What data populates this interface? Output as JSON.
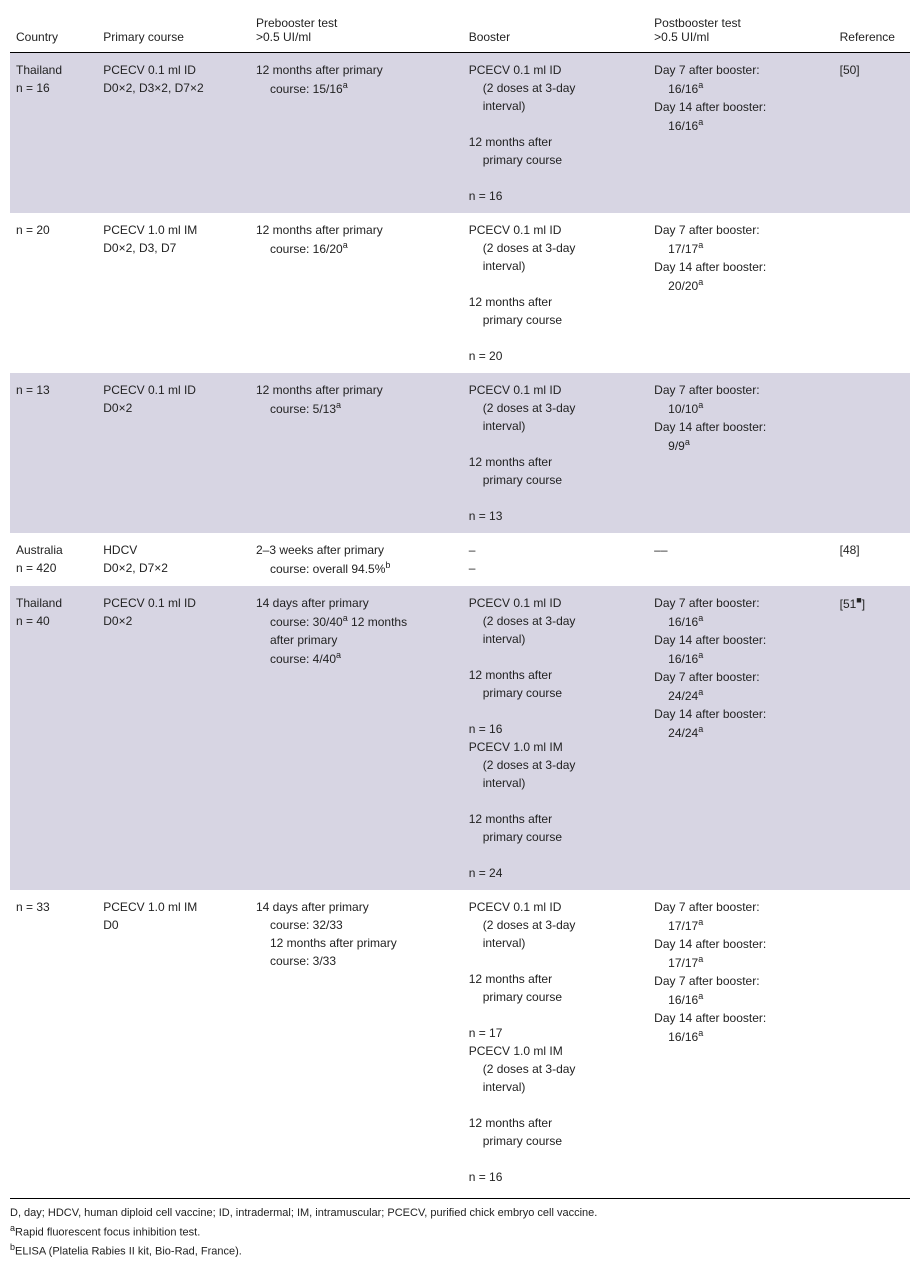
{
  "headers": {
    "country": "Country",
    "primary": "Primary course",
    "prebooster_l1": "Prebooster test",
    "prebooster_l2": ">0.5 UI/ml",
    "booster": "Booster",
    "postbooster_l1": "Postbooster test",
    "postbooster_l2": ">0.5 UI/ml",
    "reference": "Reference"
  },
  "rows": [
    {
      "shaded": true,
      "country_l1": "Thailand",
      "country_l2": "n = 16",
      "primary_l1": "PCECV 0.1 ml ID",
      "primary_l2": "D0×2, D3×2, D7×2",
      "pre_l1": "12 months after primary",
      "pre_l2": "course: 15/16",
      "pre_l2_sup": "a",
      "boost_l1": "PCECV 0.1 ml ID",
      "boost_l2": "(2 doses at 3-day",
      "boost_l3": "interval)",
      "boost_l4": "12 months after",
      "boost_l5": "primary course",
      "boost_l6": "n = 16",
      "post_l1": "Day 7 after booster:",
      "post_l2": "16/16",
      "post_l2_sup": "a",
      "post_l3": "Day 14 after booster:",
      "post_l4": "16/16",
      "post_l4_sup": "a",
      "ref": "[50]"
    },
    {
      "shaded": false,
      "country_l1": "n = 20",
      "primary_l1": "PCECV 1.0 ml IM",
      "primary_l2": "D0×2, D3, D7",
      "pre_l1": "12 months after primary",
      "pre_l2": "course: 16/20",
      "pre_l2_sup": "a",
      "boost_l1": "PCECV 0.1 ml ID",
      "boost_l2": "(2 doses at 3-day",
      "boost_l3": "interval)",
      "boost_l4": "12 months after",
      "boost_l5": "primary course",
      "boost_l6": "n = 20",
      "post_l1": "Day 7 after booster:",
      "post_l2": "17/17",
      "post_l2_sup": "a",
      "post_l3": "Day 14 after booster:",
      "post_l4": "20/20",
      "post_l4_sup": "a",
      "ref": ""
    },
    {
      "shaded": true,
      "country_l1": "n = 13",
      "primary_l1": "PCECV 0.1 ml ID",
      "primary_l2": "D0×2",
      "pre_l1": "12 months after primary",
      "pre_l2": "course: 5/13",
      "pre_l2_sup": "a",
      "boost_l1": "PCECV 0.1 ml ID",
      "boost_l2": "(2 doses at 3-day",
      "boost_l3": "interval)",
      "boost_l4": "12 months after",
      "boost_l5": "primary course",
      "boost_l6": "n = 13",
      "post_l1": "Day 7 after booster:",
      "post_l2": "10/10",
      "post_l2_sup": "a",
      "post_l3": "Day 14 after booster:",
      "post_l4": "9/9",
      "post_l4_sup": "a",
      "ref": ""
    },
    {
      "shaded": false,
      "country_l1": "Australia",
      "country_l2": "n = 420",
      "primary_l1": "HDCV",
      "primary_l2": "D0×2, D7×2",
      "pre_l1": "2–3 weeks after primary",
      "pre_l2": "course: overall 94.5%",
      "pre_l2_sup": "b",
      "boost_l1": "–",
      "boost_l7": "–",
      "post_l1": "–",
      "post_l3": "–",
      "ref": "[48]"
    },
    {
      "shaded": true,
      "country_l1": "Thailand",
      "country_l2": "n = 40",
      "primary_l1": "PCECV 0.1 ml ID",
      "primary_l2": "D0×2",
      "pre_l1": "14 days after primary",
      "pre_l2a": "course: 30/40",
      "pre_l2a_sup": "a",
      "pre_l2b": " 12 months",
      "pre_l3": "after primary",
      "pre_l4": "course: 4/40",
      "pre_l4_sup": "a",
      "boost_l1": "PCECV 0.1 ml ID",
      "boost_l2": "(2 doses at 3-day",
      "boost_l3": "interval)",
      "boost_l4": "12 months after",
      "boost_l5": "primary course",
      "boost_l6": "n = 16",
      "boost_b1": "PCECV 1.0 ml IM",
      "boost_b2": "(2 doses at 3-day",
      "boost_b3": "interval)",
      "boost_b4": "12 months after",
      "boost_b5": "primary course",
      "boost_b6": "n = 24",
      "post_l1": "Day 7 after booster:",
      "post_l2": "16/16",
      "post_l2_sup": "a",
      "post_l3": "Day 14 after booster:",
      "post_l4": "16/16",
      "post_l4_sup": "a",
      "post_b1": "Day 7 after booster:",
      "post_b2": "24/24",
      "post_b2_sup": "a",
      "post_b3": "Day 14 after booster:",
      "post_b4": "24/24",
      "post_b4_sup": "a",
      "ref": "[51",
      "ref_sup": "■",
      "ref_end": "]"
    },
    {
      "shaded": false,
      "country_l1": "n = 33",
      "primary_l1": "PCECV 1.0 ml IM",
      "primary_l2": "D0",
      "pre_l1": "14 days after primary",
      "pre_l2": "course: 32/33",
      "pre_l3": "12 months after primary",
      "pre_l4": "course: 3/33",
      "boost_l1": "PCECV 0.1 ml ID",
      "boost_l2": "(2 doses at 3-day",
      "boost_l3": "interval)",
      "boost_l4": "12 months after",
      "boost_l5": "primary course",
      "boost_l6": "n = 17",
      "boost_b1": "PCECV 1.0 ml IM",
      "boost_b2": "(2 doses at 3-day",
      "boost_b3": "interval)",
      "boost_b4": "12 months after",
      "boost_b5": "primary course",
      "boost_b6": "n = 16",
      "post_l1": "Day 7 after booster:",
      "post_l2": "17/17",
      "post_l2_sup": "a",
      "post_l3": "Day 14 after booster:",
      "post_l4": "17/17",
      "post_l4_sup": "a",
      "post_b1": "Day 7 after booster:",
      "post_b2": "16/16",
      "post_b2_sup": "a",
      "post_b3": "Day 14 after booster:",
      "post_b4": "16/16",
      "post_b4_sup": "a",
      "ref": ""
    }
  ],
  "footnotes": {
    "f1": "D, day; HDCV, human diploid cell vaccine; ID, intradermal; IM, intramuscular; PCECV, purified chick embryo cell vaccine.",
    "f2_sup": "a",
    "f2": "Rapid fluorescent focus inhibition test.",
    "f3_sup": "b",
    "f3": "ELISA (Platelia Rabies II kit, Bio-Rad, France)."
  }
}
